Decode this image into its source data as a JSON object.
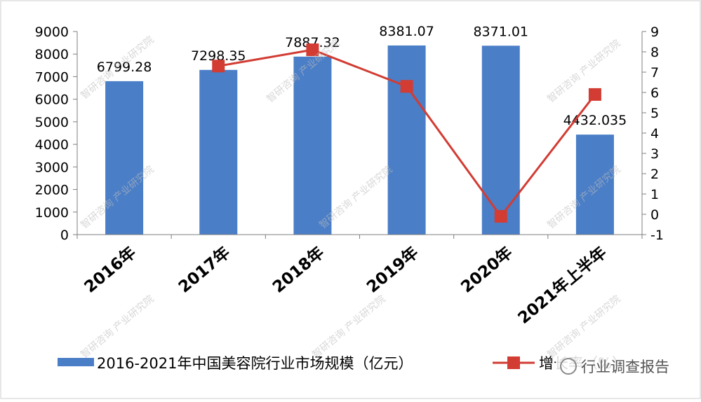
{
  "chart_data": {
    "type": "bar",
    "categories": [
      "2016年",
      "2017年",
      "2018年",
      "2019年",
      "2020年",
      "2021年上半年"
    ],
    "series": [
      {
        "name": "2016-2021年中国美容院行业市场规模（亿元）",
        "type": "bar",
        "axis": "left",
        "values": [
          6799.28,
          7298.35,
          7887.32,
          8381.07,
          8371.01,
          4432.035
        ],
        "labels": [
          "6799.28",
          "7298.35",
          "7887.32",
          "8381.07",
          "8371.01",
          "4432.035"
        ]
      },
      {
        "name": "增长率（%）",
        "type": "line",
        "axis": "right",
        "values": [
          null,
          7.3,
          8.1,
          6.3,
          -0.1,
          5.9
        ]
      }
    ],
    "y_left": {
      "min": 0,
      "max": 9000,
      "step": 1000
    },
    "y_right": {
      "min": -1,
      "max": 9,
      "step": 1
    },
    "grid": false,
    "legend_position": "bottom",
    "colors": {
      "bar": "#4A7EC7",
      "line": "#D23C33",
      "axis": "#7F7F7F",
      "text": "#000000"
    }
  },
  "watermark": {
    "repeated_text": "智研咨询 产业研究院",
    "badge_text": "行业调查报告"
  }
}
